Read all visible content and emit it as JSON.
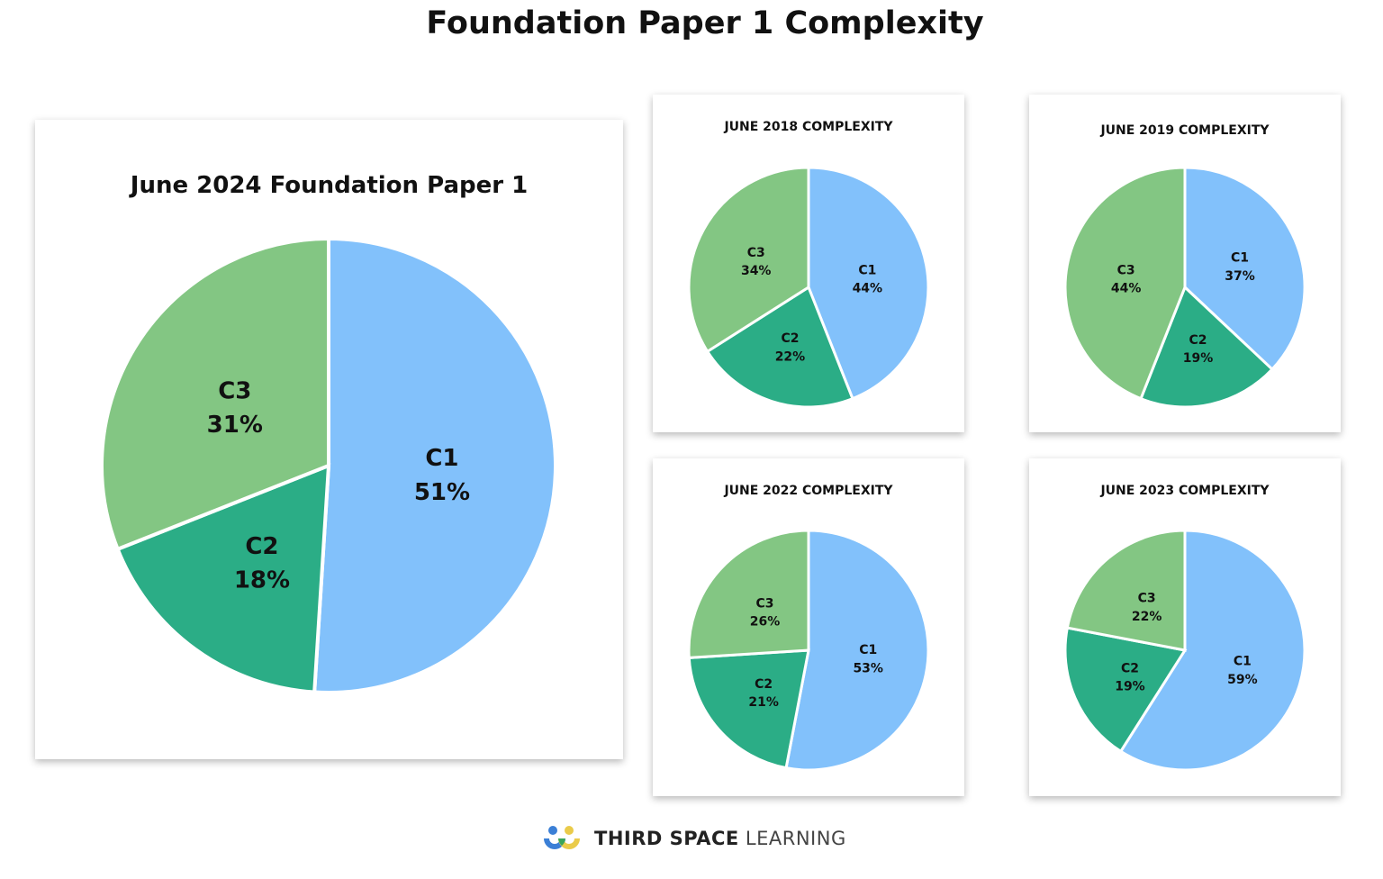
{
  "title": "Foundation Paper 1 Complexity",
  "colors": {
    "C1": "#82c1fb",
    "C2": "#2bad86",
    "C3": "#83c683"
  },
  "chart_data": [
    {
      "type": "pie",
      "title": "June 2024 Foundation Paper 1",
      "categories": [
        "C1",
        "C2",
        "C3"
      ],
      "values": [
        51,
        18,
        31
      ],
      "start": "12 o'clock",
      "direction": "clockwise"
    },
    {
      "type": "pie",
      "title": "JUNE 2018 COMPLEXITY",
      "categories": [
        "C1",
        "C2",
        "C3"
      ],
      "values": [
        44,
        22,
        34
      ],
      "start": "12 o'clock",
      "direction": "clockwise"
    },
    {
      "type": "pie",
      "title": "JUNE 2019 COMPLEXITY",
      "categories": [
        "C1",
        "C2",
        "C3"
      ],
      "values": [
        37,
        19,
        44
      ],
      "start": "12 o'clock",
      "direction": "clockwise"
    },
    {
      "type": "pie",
      "title": "JUNE 2022 COMPLEXITY",
      "categories": [
        "C1",
        "C2",
        "C3"
      ],
      "values": [
        53,
        21,
        26
      ],
      "start": "12 o'clock",
      "direction": "clockwise"
    },
    {
      "type": "pie",
      "title": "JUNE 2023 COMPLEXITY",
      "categories": [
        "C1",
        "C2",
        "C3"
      ],
      "values": [
        59,
        19,
        22
      ],
      "start": "12 o'clock",
      "direction": "clockwise"
    }
  ],
  "footer": {
    "brand_bold": "THIRD SPACE",
    "brand_light": "LEARNING",
    "logo_icon": "third-space-learning-logo-icon"
  }
}
